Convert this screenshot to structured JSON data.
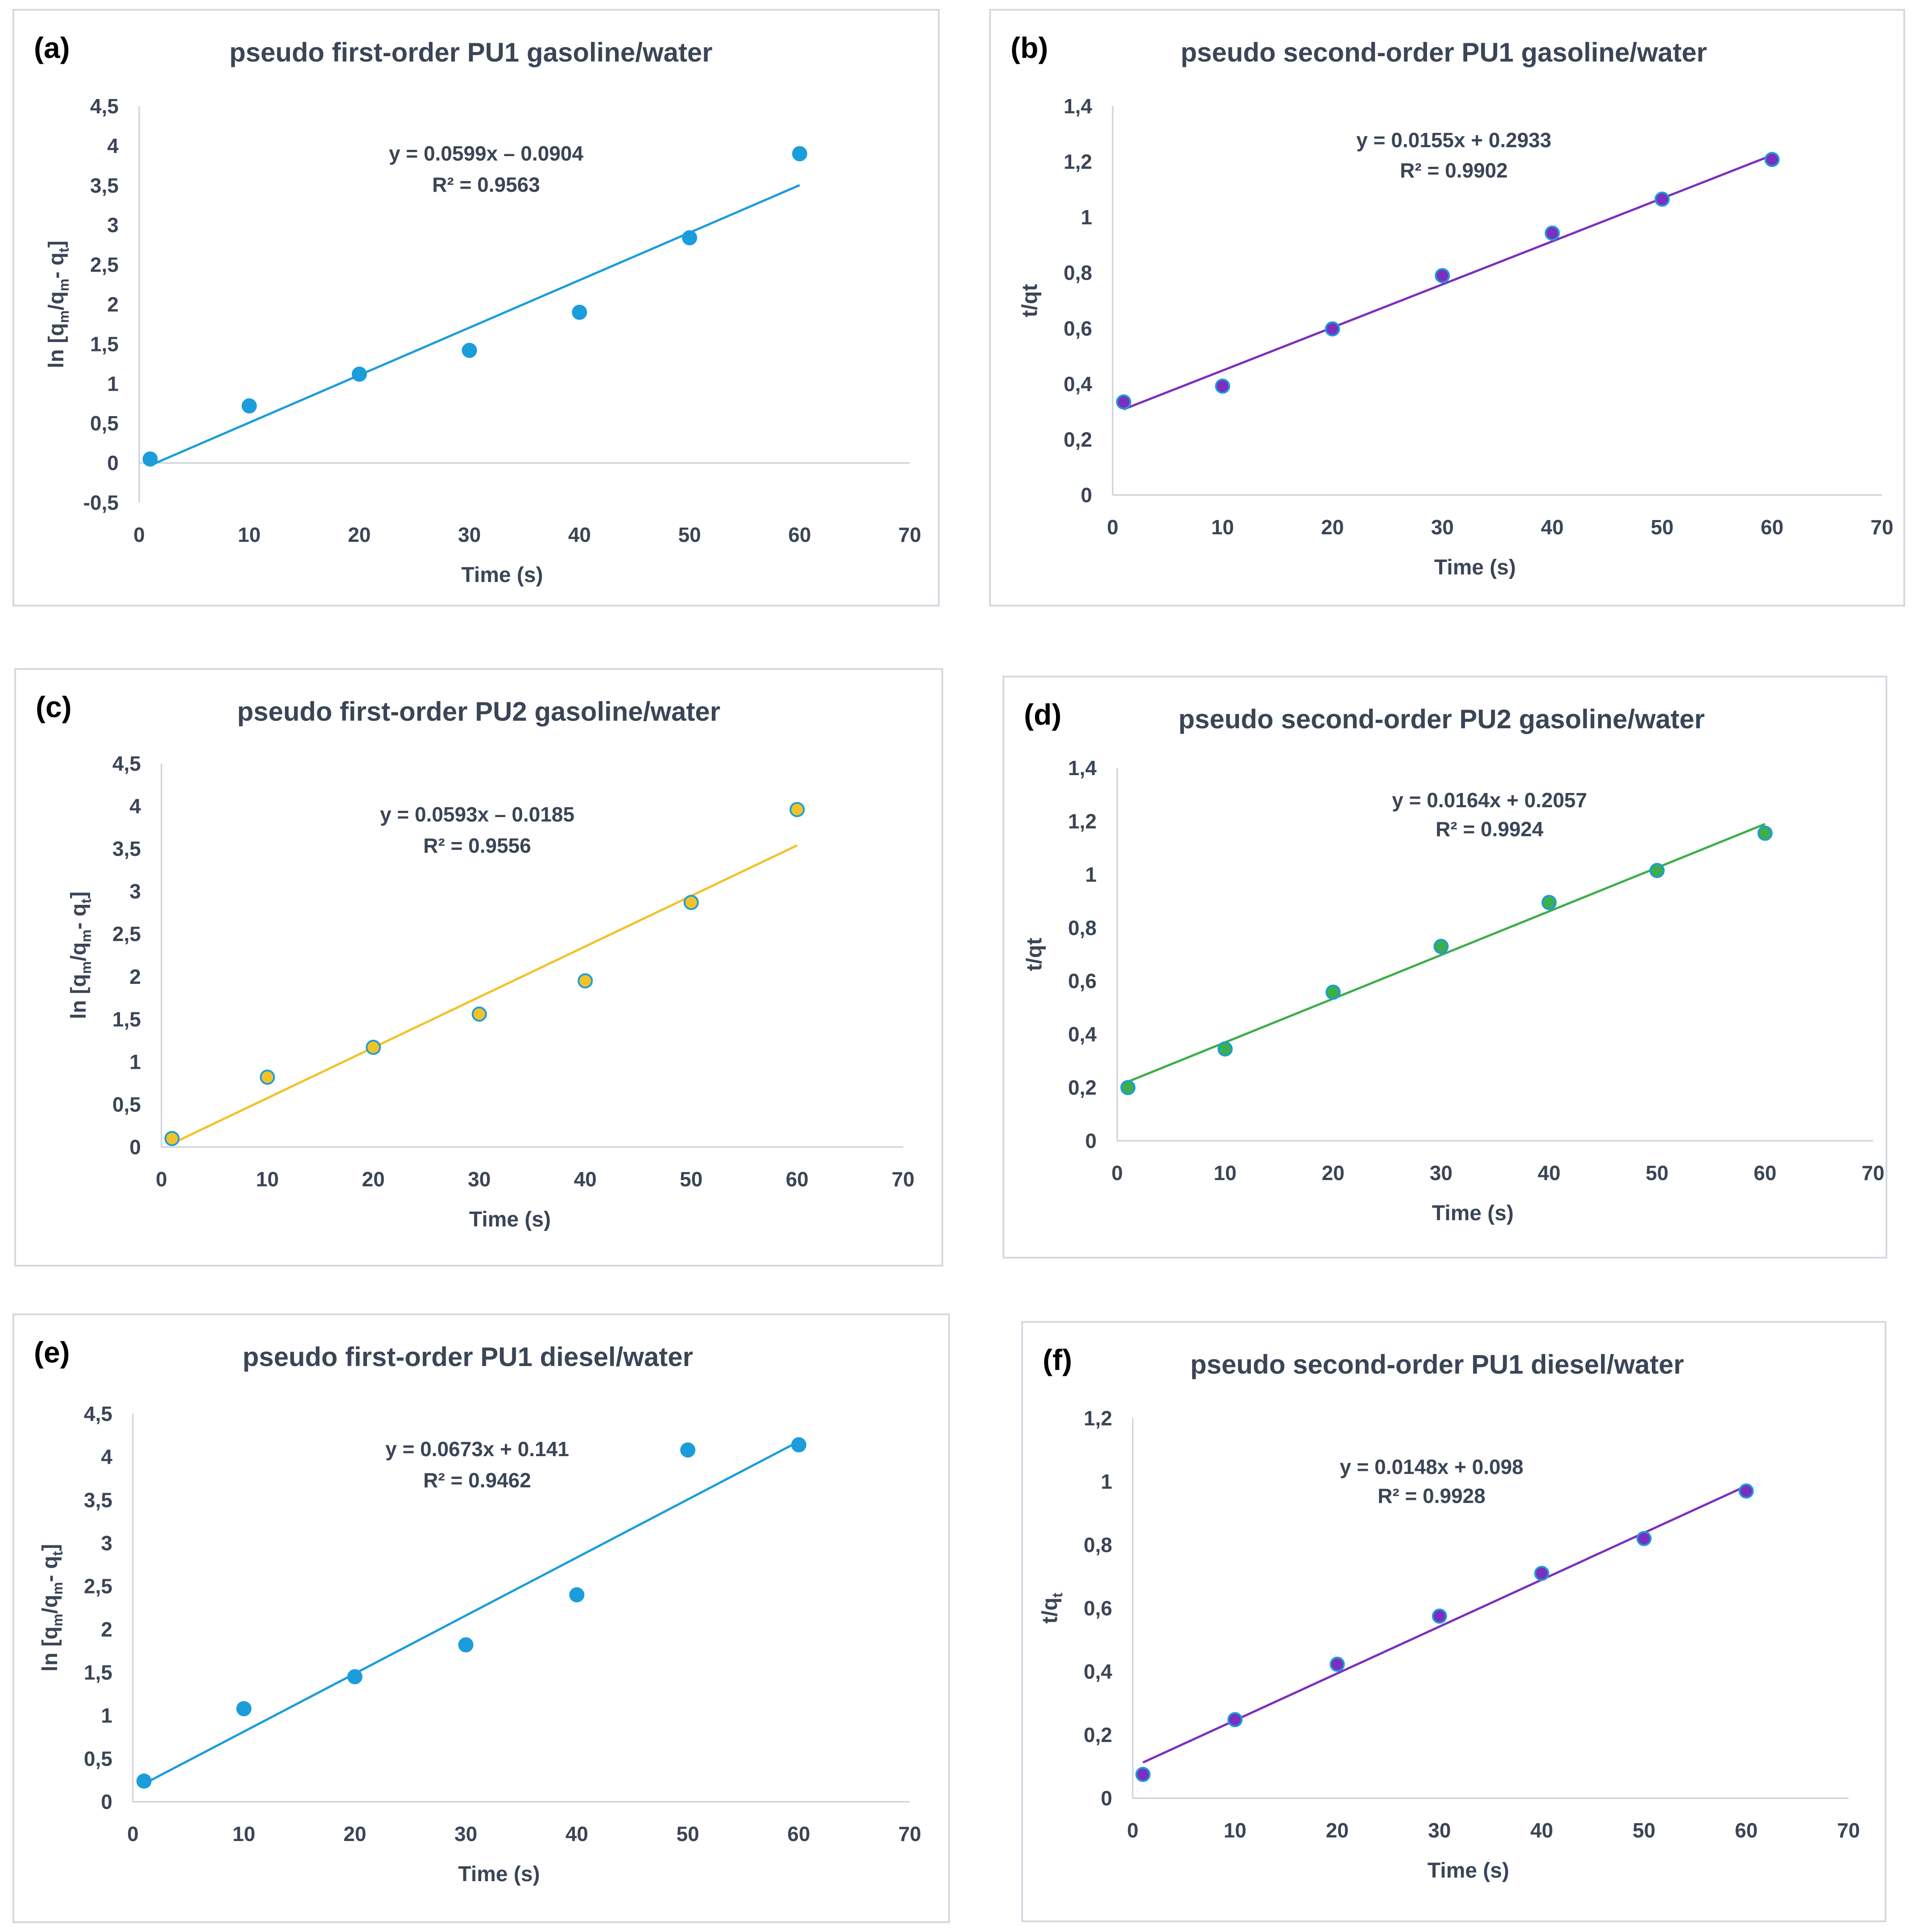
{
  "chart_data": [
    {
      "type": "scatter",
      "panel_label": "(a)",
      "title": "pseudo first-order PU1 gasoline/water",
      "xlabel": "Time (s)",
      "ylabel": {
        "main": "ln [q",
        "sub1": "m",
        "mid": "/q",
        "sub2": "m",
        "tail": "- q",
        "sub3": "t",
        "end": "]"
      },
      "xlim": [
        0,
        70
      ],
      "ylim": [
        -0.5,
        4.5
      ],
      "xticks": [
        0,
        10,
        20,
        30,
        40,
        50,
        60,
        70
      ],
      "xtick_labels": [
        "0",
        "10",
        "20",
        "30",
        "40",
        "50",
        "60",
        "70"
      ],
      "yticks": [
        -0.5,
        0,
        0.5,
        1,
        1.5,
        2,
        2.5,
        3,
        3.5,
        4,
        4.5
      ],
      "ytick_labels": [
        "-0,5",
        "0",
        "0,5",
        "1",
        "1,5",
        "2",
        "2,5",
        "3",
        "3,5",
        "4",
        "4,5"
      ],
      "x": [
        1,
        10,
        20,
        30,
        40,
        50,
        60
      ],
      "y": [
        0.05,
        0.72,
        1.12,
        1.42,
        1.9,
        2.84,
        3.9
      ],
      "marker_color": "#1B9DDB",
      "marker_edge": "#1B9DDB",
      "trendline": {
        "slope": 0.0599,
        "intercept": -0.0904,
        "x_range": [
          1,
          60
        ],
        "color": "#1B9DDB"
      },
      "equation": "y = 0.0599x  – 0.0904",
      "r2_label": "R² = 0.9563"
    },
    {
      "type": "scatter",
      "panel_label": "(b)",
      "title": "pseudo second-order PU1 gasoline/water",
      "xlabel": "Time (s)",
      "ylabel": {
        "main": "t/qt"
      },
      "xlim": [
        0,
        70
      ],
      "ylim": [
        0,
        1.4
      ],
      "xticks": [
        0,
        10,
        20,
        30,
        40,
        50,
        60,
        70
      ],
      "xtick_labels": [
        "0",
        "10",
        "20",
        "30",
        "40",
        "50",
        "60",
        "70"
      ],
      "yticks": [
        0,
        0.2,
        0.4,
        0.6,
        0.8,
        1,
        1.2,
        1.4
      ],
      "ytick_labels": [
        "0",
        "0,2",
        "0,4",
        "0,6",
        "0,8",
        "1",
        "1,2",
        "1,4"
      ],
      "x": [
        1,
        10,
        20,
        30,
        40,
        50,
        60
      ],
      "y": [
        0.335,
        0.392,
        0.598,
        0.79,
        0.943,
        1.065,
        1.208
      ],
      "marker_color": "#7B2FBE",
      "marker_edge": "#1B9DDB",
      "trendline": {
        "slope": 0.0155,
        "intercept": 0.2933,
        "x_range": [
          1,
          60
        ],
        "color": "#7B2FBE"
      },
      "equation": "y = 0.0155x + 0.2933",
      "r2_label": "R² = 0.9902"
    },
    {
      "type": "scatter",
      "panel_label": "(c)",
      "title": "pseudo first-order PU2 gasoline/water",
      "xlabel": "Time (s)",
      "ylabel": {
        "main": "ln [q",
        "sub1": "m",
        "mid": "/q",
        "sub2": "m",
        "tail": "- q",
        "sub3": "t",
        "end": "]"
      },
      "xlim": [
        0,
        70
      ],
      "ylim": [
        0,
        4.5
      ],
      "xticks": [
        0,
        10,
        20,
        30,
        40,
        50,
        60,
        70
      ],
      "xtick_labels": [
        "0",
        "10",
        "20",
        "30",
        "40",
        "50",
        "60",
        "70"
      ],
      "yticks": [
        0,
        0.5,
        1,
        1.5,
        2,
        2.5,
        3,
        3.5,
        4,
        4.5
      ],
      "ytick_labels": [
        "0",
        "0,5",
        "1",
        "1,5",
        "2",
        "2,5",
        "3",
        "3,5",
        "4",
        "4,5"
      ],
      "x": [
        1,
        10,
        20,
        30,
        40,
        50,
        60
      ],
      "y": [
        0.1,
        0.82,
        1.17,
        1.56,
        1.95,
        2.87,
        3.96
      ],
      "marker_color": "#F2C22A",
      "marker_edge": "#1B9DDB",
      "trendline": {
        "slope": 0.0593,
        "intercept": -0.0185,
        "x_range": [
          1,
          60
        ],
        "color": "#F2C22A"
      },
      "equation": "y = 0.0593x – 0.0185",
      "r2_label": "R² = 0.9556"
    },
    {
      "type": "scatter",
      "panel_label": "(d)",
      "title": "pseudo second-order PU2 gasoline/water",
      "xlabel": "Time (s)",
      "ylabel": {
        "main": "t/qt"
      },
      "xlim": [
        0,
        70
      ],
      "ylim": [
        0,
        1.4
      ],
      "xticks": [
        0,
        10,
        20,
        30,
        40,
        50,
        60,
        70
      ],
      "xtick_labels": [
        "0",
        "10",
        "20",
        "30",
        "40",
        "50",
        "60",
        "70"
      ],
      "yticks": [
        0,
        0.2,
        0.4,
        0.6,
        0.8,
        1,
        1.2,
        1.4
      ],
      "ytick_labels": [
        "0",
        "0,2",
        "0,4",
        "0,6",
        "0,8",
        "1",
        "1,2",
        "1,4"
      ],
      "x": [
        1,
        10,
        20,
        30,
        40,
        50,
        60
      ],
      "y": [
        0.2,
        0.345,
        0.558,
        0.73,
        0.895,
        1.015,
        1.155
      ],
      "marker_color": "#3DAE49",
      "marker_edge": "#1B9DDB",
      "trendline": {
        "slope": 0.0164,
        "intercept": 0.2057,
        "x_range": [
          1,
          60
        ],
        "color": "#3DAE49"
      },
      "equation": "y = 0.0164x + 0.2057",
      "r2_label": "R² = 0.9924"
    },
    {
      "type": "scatter",
      "panel_label": "(e)",
      "title": "pseudo first-order PU1 diesel/water",
      "xlabel": "Time (s)",
      "ylabel": {
        "main": "ln [q",
        "sub1": "m",
        "mid": "/q",
        "sub2": "m",
        "tail": "- q",
        "sub3": "t",
        "end": "]"
      },
      "xlim": [
        0,
        70
      ],
      "ylim": [
        0,
        4.5
      ],
      "xticks": [
        0,
        10,
        20,
        30,
        40,
        50,
        60,
        70
      ],
      "xtick_labels": [
        "0",
        "10",
        "20",
        "30",
        "40",
        "50",
        "60",
        "70"
      ],
      "yticks": [
        0,
        0.5,
        1,
        1.5,
        2,
        2.5,
        3,
        3.5,
        4,
        4.5
      ],
      "ytick_labels": [
        "0",
        "0,5",
        "1",
        "1,5",
        "2",
        "2,5",
        "3",
        "3,5",
        "4",
        "4,5"
      ],
      "x": [
        1,
        10,
        20,
        30,
        40,
        50,
        60
      ],
      "y": [
        0.24,
        1.08,
        1.45,
        1.82,
        2.4,
        4.08,
        4.14
      ],
      "marker_color": "#1B9DDB",
      "marker_edge": "#1B9DDB",
      "trendline": {
        "slope": 0.0673,
        "intercept": 0.141,
        "x_range": [
          1,
          60
        ],
        "color": "#1B9DDB"
      },
      "equation": "y = 0.0673x + 0.141",
      "r2_label": "R² = 0.9462"
    },
    {
      "type": "scatter",
      "panel_label": "(f)",
      "title": "pseudo second-order PU1 diesel/water",
      "xlabel": "Time (s)",
      "ylabel": {
        "main": "t/q",
        "sub1": "t"
      },
      "xlim": [
        0,
        70
      ],
      "ylim": [
        0,
        1.2
      ],
      "xticks": [
        0,
        10,
        20,
        30,
        40,
        50,
        60,
        70
      ],
      "xtick_labels": [
        "0",
        "10",
        "20",
        "30",
        "40",
        "50",
        "60",
        "70"
      ],
      "yticks": [
        0,
        0.2,
        0.4,
        0.6,
        0.8,
        1,
        1.2
      ],
      "ytick_labels": [
        "0",
        "0,2",
        "0,4",
        "0,6",
        "0,8",
        "1",
        "1,2"
      ],
      "x": [
        1,
        10,
        20,
        30,
        40,
        50,
        60
      ],
      "y": [
        0.075,
        0.248,
        0.423,
        0.575,
        0.71,
        0.82,
        0.97
      ],
      "marker_color": "#7B2FBE",
      "marker_edge": "#1B9DDB",
      "trendline": {
        "slope": 0.0148,
        "intercept": 0.098,
        "x_range": [
          1,
          60
        ],
        "color": "#7B2FBE"
      },
      "equation": "y = 0.0148x + 0.098",
      "r2_label": "R² = 0.9928"
    }
  ]
}
